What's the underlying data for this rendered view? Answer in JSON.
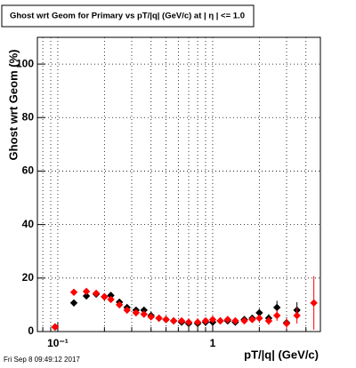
{
  "chart_data": {
    "type": "scatter",
    "title": "Ghost wrt Geom for Primary vs pT/|q| (GeV/c) at | η | <= 1.0",
    "x_label": "pT/|q| (GeV/c)",
    "y_label": "Ghost wrt Geom (%)",
    "footer": "Fri Sep  8 09:49:12 2017",
    "x_log": true,
    "grid": true,
    "xlim": [
      0.0738,
      4.96
    ],
    "ylim": [
      0,
      110
    ],
    "xticks": [
      {
        "value": 0.1,
        "label": "10⁻¹"
      },
      1
    ],
    "xminorticks": [
      0.08,
      0.09,
      0.2,
      0.3,
      0.4,
      0.5,
      0.6,
      0.7,
      0.8,
      0.9,
      2,
      3,
      4
    ],
    "yticks": [
      0,
      20,
      40,
      60,
      80,
      100
    ],
    "x": [
      0.096,
      0.127,
      0.153,
      0.177,
      0.2,
      0.22,
      0.25,
      0.28,
      0.32,
      0.36,
      0.4,
      0.45,
      0.5,
      0.56,
      0.63,
      0.7,
      0.8,
      0.9,
      1.0,
      1.12,
      1.25,
      1.4,
      1.6,
      1.8,
      2.0,
      2.3,
      2.6,
      3.0,
      3.5,
      4.5
    ],
    "series": [
      {
        "name": "black",
        "color": "#000000",
        "values": [
          1.7,
          10.7,
          13.3,
          14,
          13,
          13.5,
          11,
          9,
          8,
          8,
          6,
          5,
          4.5,
          4,
          3.5,
          3,
          3,
          3.5,
          3.5,
          4,
          4,
          3.5,
          4.5,
          5,
          7,
          5,
          9,
          3.3,
          8,
          null
        ],
        "errors": [
          0.8,
          0.8,
          0.6,
          0.6,
          0.5,
          0.5,
          0.5,
          0.5,
          0.5,
          0.5,
          0.5,
          0.5,
          0.5,
          0.5,
          0.5,
          0.5,
          0.5,
          0.5,
          0.5,
          0.6,
          0.6,
          0.7,
          0.8,
          1,
          1.5,
          1.5,
          2.5,
          2,
          3,
          null
        ]
      },
      {
        "name": "red",
        "color": "#ff0000",
        "values": [
          1.7,
          14.7,
          15,
          14.3,
          13,
          12,
          10,
          8,
          7,
          6.5,
          5.5,
          5,
          4.5,
          4,
          4,
          3.5,
          3.5,
          4,
          4.5,
          4,
          4.5,
          4,
          4,
          4.5,
          5,
          4,
          6,
          3,
          6,
          10.7
        ],
        "errors": [
          0.8,
          0.8,
          0.6,
          0.6,
          0.5,
          0.5,
          0.5,
          0.5,
          0.5,
          0.5,
          0.5,
          0.5,
          0.5,
          0.5,
          0.5,
          0.5,
          0.5,
          0.5,
          0.5,
          0.6,
          0.6,
          0.7,
          0.8,
          1,
          1.2,
          1.5,
          2,
          2,
          3,
          10
        ]
      }
    ]
  }
}
